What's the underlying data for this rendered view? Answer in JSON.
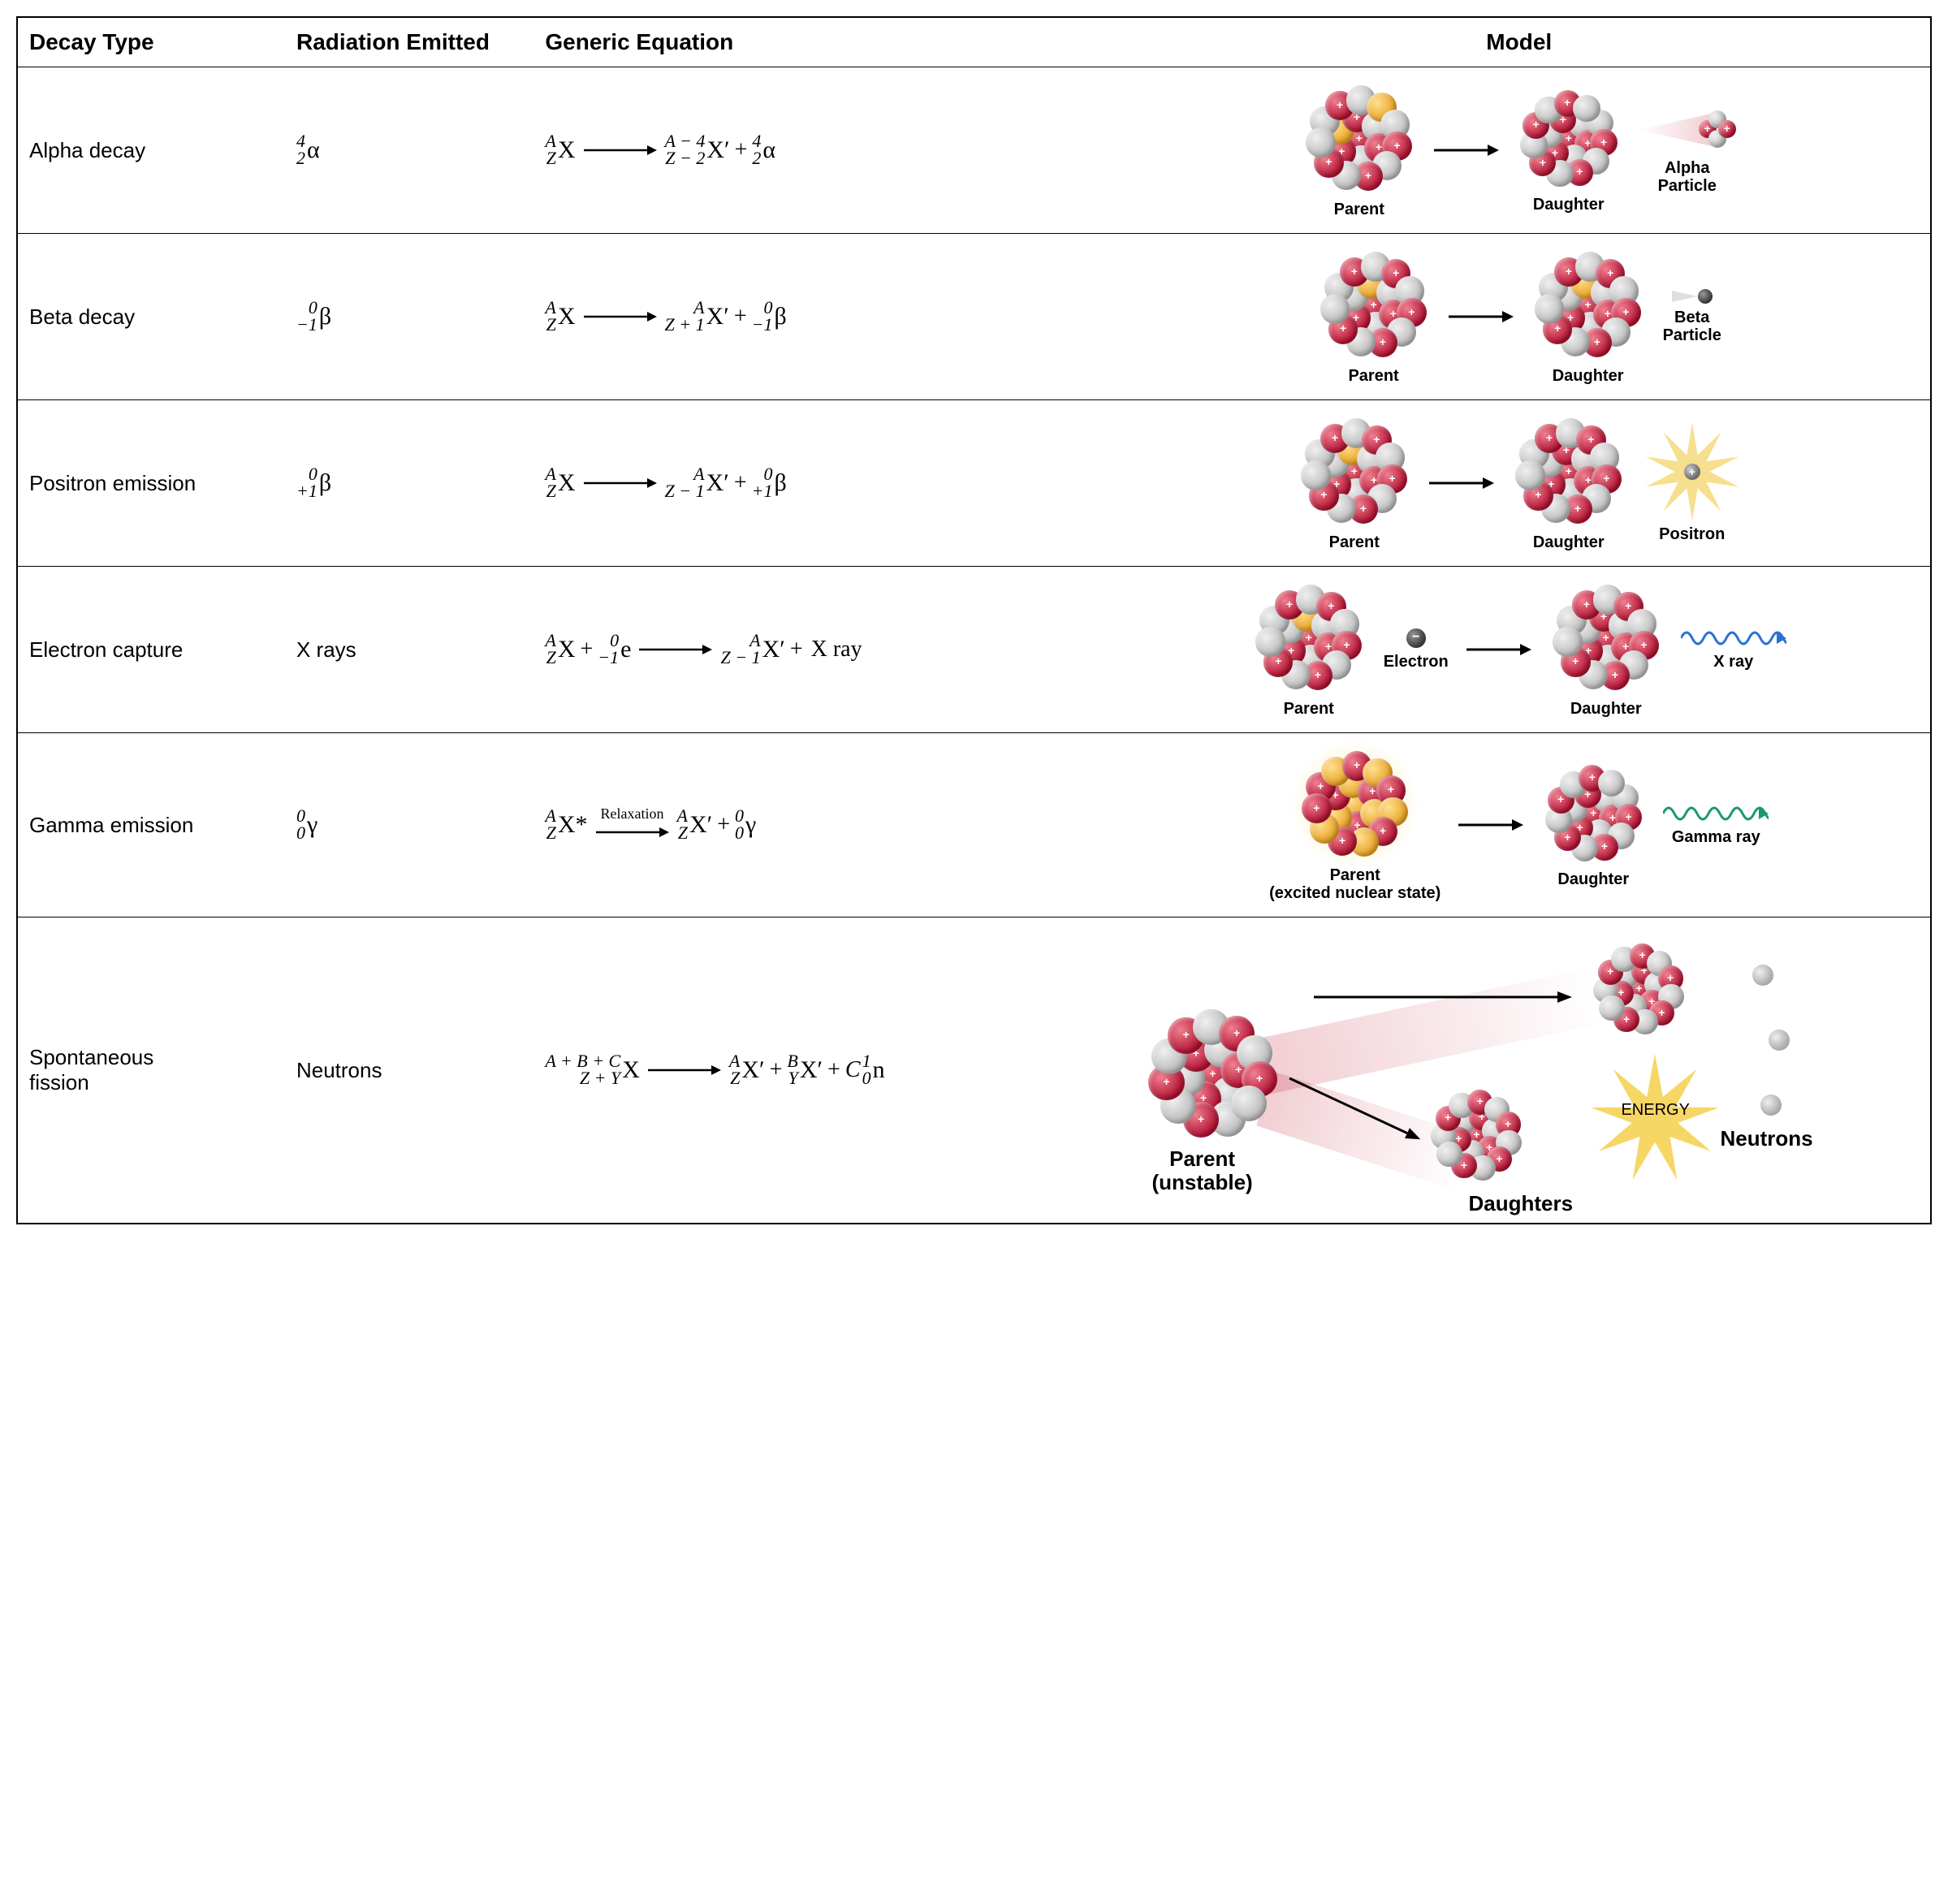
{
  "headers": {
    "type": "Decay Type",
    "radiation": "Radiation Emitted",
    "equation": "Generic Equation",
    "model": "Model"
  },
  "colors": {
    "proton": "#b01030",
    "neutron": "#c8c8c8",
    "highlight": "#e8a020",
    "xray": "#2a6fd6",
    "gamma": "#1a9a6a",
    "energy_star": "#f4cf4a",
    "positron_star": "#f4d97a",
    "arrow": "#000000",
    "border": "#000000"
  },
  "rows": [
    {
      "name": "Alpha decay",
      "radiation": {
        "top": "4",
        "bot": "2",
        "sym": "α"
      },
      "equation": {
        "lhs": [
          {
            "top": "A",
            "bot": "Z",
            "sym": "X"
          }
        ],
        "arrow_label": "",
        "rhs": [
          {
            "top": "A − 4",
            "bot": "Z − 2",
            "sym": "X′"
          },
          {
            "plus": true
          },
          {
            "top": "4",
            "bot": "2",
            "sym": "α"
          }
        ]
      },
      "model_labels": {
        "p0": "Parent",
        "p1": "Daughter",
        "p2": "Alpha\nParticle"
      },
      "nucleus_size": 140
    },
    {
      "name": "Beta decay",
      "radiation": {
        "top": "0",
        "bot": "−1",
        "sym": "β"
      },
      "equation": {
        "lhs": [
          {
            "top": "A",
            "bot": "Z",
            "sym": "X"
          }
        ],
        "arrow_label": "",
        "rhs": [
          {
            "top": "A",
            "bot": "Z + 1",
            "sym": "X′"
          },
          {
            "plus": true
          },
          {
            "top": "0",
            "bot": "−1",
            "sym": "β"
          }
        ]
      },
      "model_labels": {
        "p0": "Parent",
        "p1": "Daughter",
        "p2": "Beta\nParticle"
      },
      "nucleus_size": 140
    },
    {
      "name": "Positron emission",
      "radiation": {
        "top": "0",
        "bot": "+1",
        "sym": "β"
      },
      "equation": {
        "lhs": [
          {
            "top": "A",
            "bot": "Z",
            "sym": "X"
          }
        ],
        "arrow_label": "",
        "rhs": [
          {
            "top": "A",
            "bot": "Z − 1",
            "sym": "X′"
          },
          {
            "plus": true
          },
          {
            "top": "0",
            "bot": "+1",
            "sym": "β"
          }
        ]
      },
      "model_labels": {
        "p0": "Parent",
        "p1": "Daughter",
        "p2": "Positron"
      },
      "nucleus_size": 140
    },
    {
      "name": "Electron capture",
      "radiation_text": "X rays",
      "equation": {
        "lhs": [
          {
            "top": "A",
            "bot": "Z",
            "sym": "X"
          },
          {
            "plus": true
          },
          {
            "top": "0",
            "bot": "−1",
            "sym": "e"
          }
        ],
        "arrow_label": "",
        "rhs": [
          {
            "top": "A",
            "bot": "Z − 1",
            "sym": "X′"
          },
          {
            "plus": true
          },
          {
            "text": "X ray"
          }
        ]
      },
      "model_labels": {
        "p0": "Parent",
        "p1": "Electron",
        "p2": "Daughter",
        "p3": "X ray"
      },
      "nucleus_size": 140
    },
    {
      "name": "Gamma emission",
      "radiation": {
        "top": "0",
        "bot": "0",
        "sym": "γ"
      },
      "equation": {
        "lhs": [
          {
            "top": "A",
            "bot": "Z",
            "sym": "X*"
          }
        ],
        "arrow_label": "Relaxation",
        "rhs": [
          {
            "top": "A",
            "bot": "Z",
            "sym": "X′"
          },
          {
            "plus": true
          },
          {
            "top": "0",
            "bot": "0",
            "sym": "γ"
          }
        ]
      },
      "model_labels": {
        "p0": "Parent\n(excited nuclear state)",
        "p1": "Daughter",
        "p2": "Gamma ray"
      },
      "nucleus_size": 140
    },
    {
      "name": "Spontaneous fission",
      "radiation_text": "Neutrons",
      "equation": {
        "lhs": [
          {
            "top": "A + B + C",
            "bot": "Z + Y",
            "sym": "X"
          }
        ],
        "arrow_label": "",
        "rhs": [
          {
            "top": "A",
            "bot": "Z",
            "sym": "X′"
          },
          {
            "plus": true
          },
          {
            "top": "B",
            "bot": "Y",
            "sym": "X′"
          },
          {
            "plus": true
          },
          {
            "top": "1",
            "bot": "0",
            "sym": "n",
            "pre": "C"
          }
        ]
      },
      "model_labels": {
        "p0": "Parent\n(unstable)",
        "p1": "Daughters",
        "p2": "Neutrons",
        "energy": "ENERGY"
      },
      "nucleus_size": 170
    }
  ]
}
